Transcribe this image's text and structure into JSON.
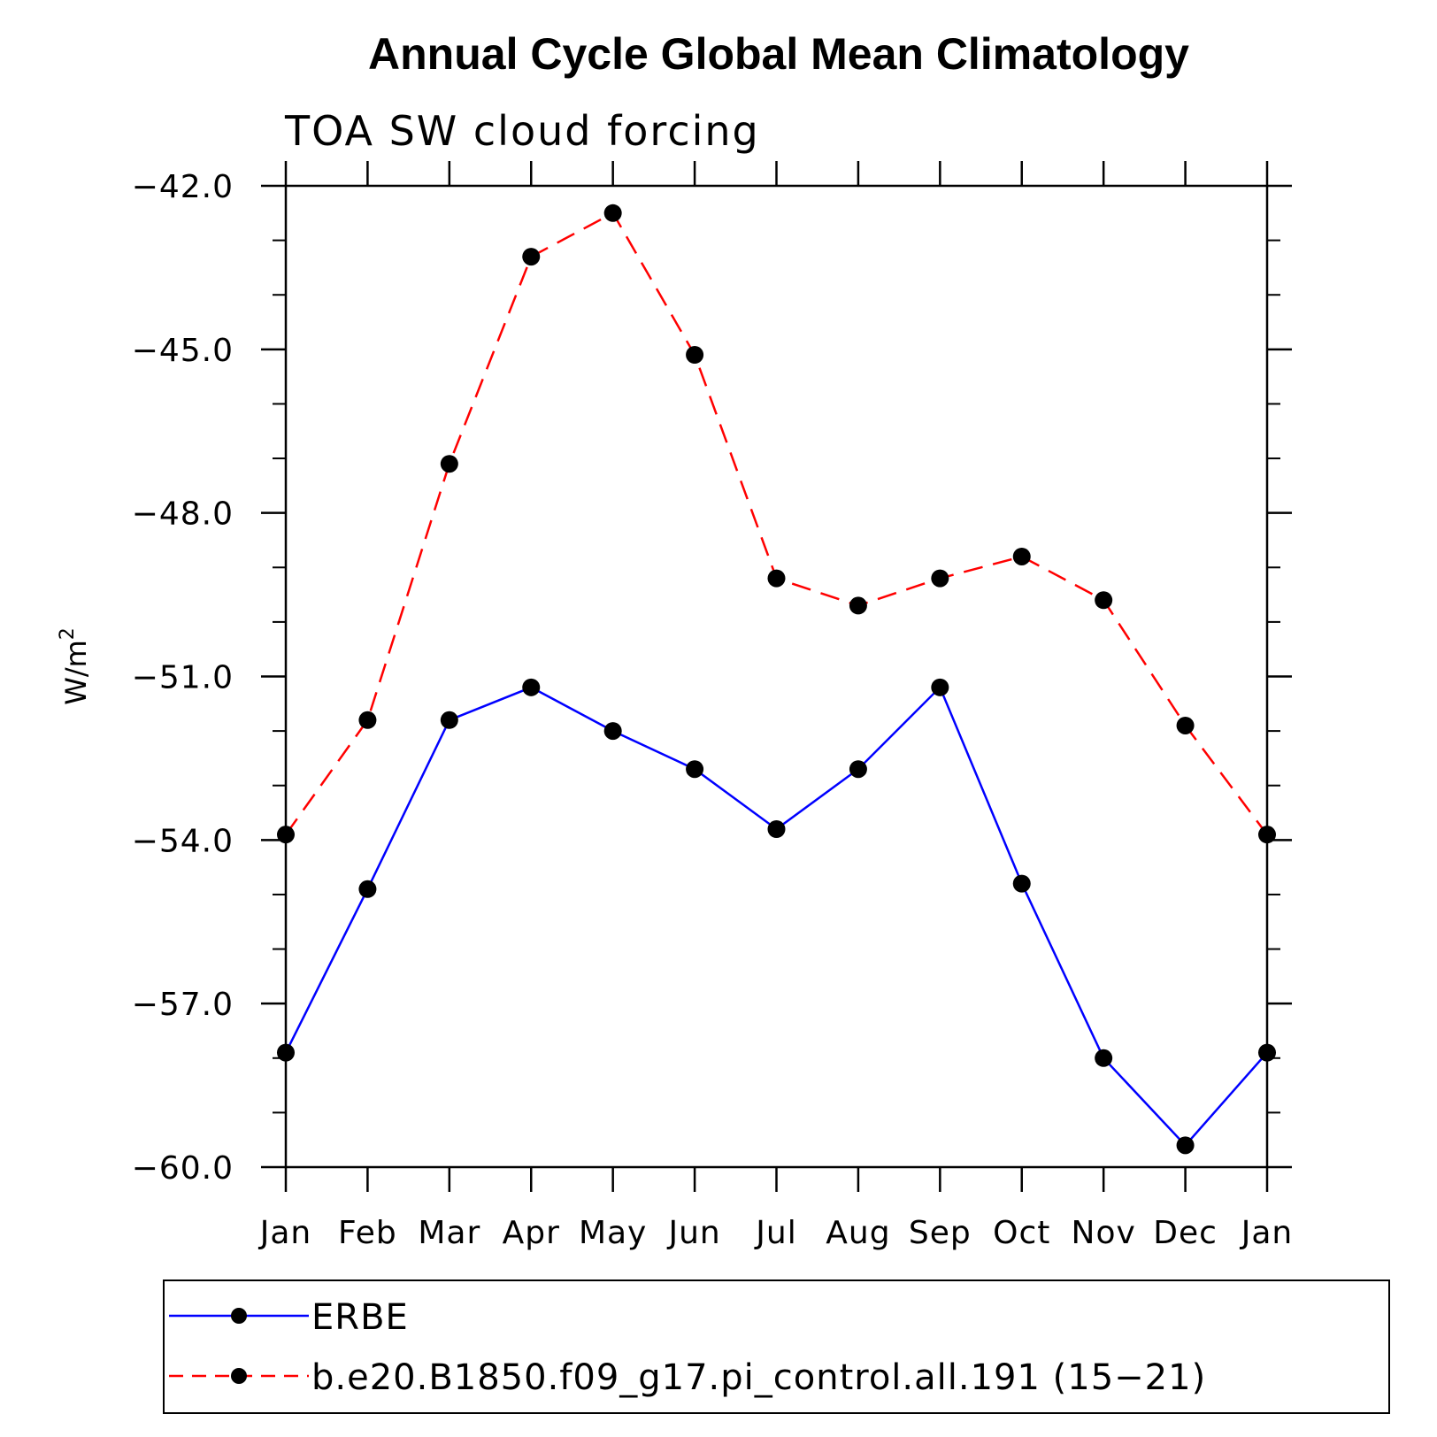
{
  "chart_data": {
    "type": "line",
    "title": "Annual Cycle Global Mean Climatology",
    "subtitle": "TOA SW cloud forcing",
    "ylabel": "W/m",
    "ylabel_superscript": "2",
    "ylim": [
      -60.0,
      -42.0
    ],
    "y_major_ticks": [
      -42.0,
      -45.0,
      -48.0,
      -51.0,
      -54.0,
      -57.0,
      -60.0
    ],
    "y_tick_labels": [
      "−42.0",
      "−45.0",
      "−48.0",
      "−51.0",
      "−54.0",
      "−57.0",
      "−60.0"
    ],
    "categories": [
      "Jan",
      "Feb",
      "Mar",
      "Apr",
      "May",
      "Jun",
      "Jul",
      "Aug",
      "Sep",
      "Oct",
      "Nov",
      "Dec",
      "Jan"
    ],
    "grid": false,
    "legend_position": "bottom",
    "series": [
      {
        "name": "ERBE",
        "color": "#0000ff",
        "line_style": "solid",
        "marker": "filled-circle",
        "values": [
          -57.9,
          -54.9,
          -51.8,
          -51.2,
          -52.0,
          -52.7,
          -53.8,
          -52.7,
          -51.2,
          -54.8,
          -58.0,
          -59.6,
          -57.9
        ]
      },
      {
        "name": "b.e20.B1850.f09_g17.pi_control.all.191 (15−21)",
        "color": "#ff0000",
        "line_style": "dashed",
        "marker": "filled-circle",
        "values": [
          -53.9,
          -51.8,
          -47.1,
          -43.3,
          -42.5,
          -45.1,
          -49.2,
          -49.7,
          -49.2,
          -48.8,
          -49.6,
          -51.9,
          -53.9
        ]
      }
    ]
  }
}
